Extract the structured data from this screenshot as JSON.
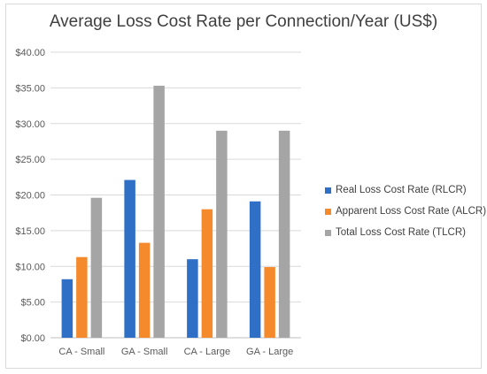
{
  "chart_data": {
    "type": "bar",
    "title": "Average Loss Cost Rate per Connection/Year (US$)",
    "xlabel": "",
    "ylabel": "",
    "categories": [
      "CA - Small",
      "GA - Small",
      "CA - Large",
      "GA - Large"
    ],
    "series": [
      {
        "name": "Real Loss Cost Rate (RLCR)",
        "color": "#2f6fc6",
        "values": [
          8.2,
          22.1,
          11.0,
          19.1
        ]
      },
      {
        "name": "Apparent Loss Cost Rate (ALCR)",
        "color": "#f58a2d",
        "values": [
          11.3,
          13.3,
          18.0,
          9.9
        ]
      },
      {
        "name": "Total Loss Cost Rate (TLCR)",
        "color": "#a5a5a5",
        "values": [
          19.6,
          35.3,
          29.0,
          29.0
        ]
      }
    ],
    "ylim": [
      0,
      40
    ],
    "yticks": [
      "$0.00",
      "$5.00",
      "$10.00",
      "$15.00",
      "$20.00",
      "$25.00",
      "$30.00",
      "$35.00",
      "$40.00"
    ],
    "grid": true,
    "legend_position": "right"
  }
}
